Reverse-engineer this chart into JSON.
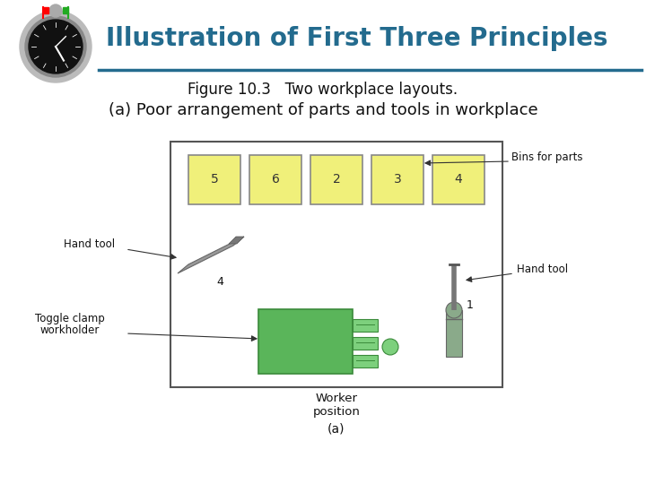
{
  "title": "Illustration of First Three Principles",
  "subtitle": "Figure 10.3   Two workplace layouts.",
  "subtitle2": "(a) Poor arrangement of parts and tools in workplace",
  "title_color": "#236b8e",
  "background_color": "#ffffff",
  "header_line_color": "#236b8e",
  "bin_numbers": [
    "5",
    "6",
    "2",
    "3",
    "4"
  ],
  "bin_color": "#f0f07a",
  "bin_border": "#888888",
  "worktable_border": "#555555",
  "toggle_clamp_color": "#5ab55a",
  "toggle_clamp_dark": "#3a8a3a",
  "toggle_clamp_light": "#7dd07d",
  "screwdriver_handle": "#8aaa8a",
  "screwdriver_shaft": "#888888",
  "hand_tool_color": "#999999",
  "label_color": "#111111",
  "arrow_color": "#333333",
  "caption": "(a)",
  "stopwatch_outer": "#bbbbbb",
  "stopwatch_ring": "#888888",
  "stopwatch_face": "#111111",
  "stopwatch_crown": "#aaaaaa"
}
